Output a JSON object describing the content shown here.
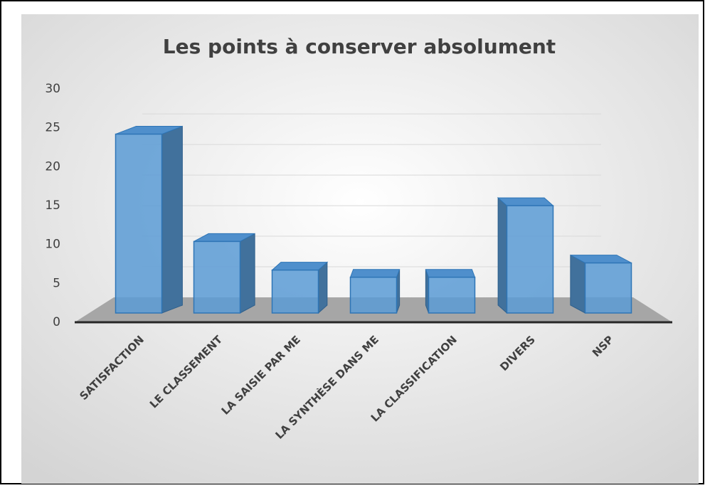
{
  "chart_data": {
    "type": "bar3d",
    "title": "Les points à conserver absolument",
    "categories": [
      "SATISFACTION",
      "LE CLASSEMENT",
      "LA SAISIE PAR ME",
      "LA SYNTHÈSE DANS ME",
      "LA CLASSIFICATION",
      "DIVERS",
      "NSP"
    ],
    "values": [
      25,
      10,
      6,
      5,
      5,
      15,
      7
    ],
    "color": "#5b9bd5",
    "ylim": [
      0,
      30
    ],
    "yticks": [
      0,
      5,
      10,
      15,
      20,
      25,
      30
    ],
    "grid": true
  }
}
